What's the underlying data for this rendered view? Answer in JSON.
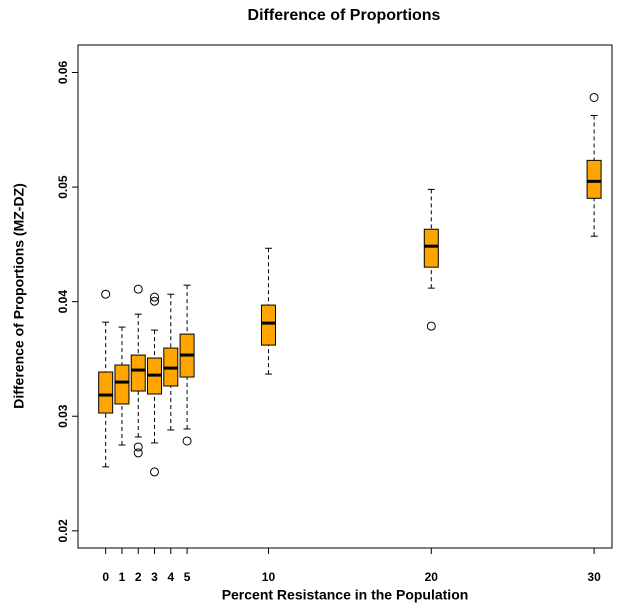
{
  "chart_data": {
    "type": "boxplot",
    "title": "Difference of Proportions",
    "xlabel": "Percent Resistance in the Population",
    "ylabel": "Difference of Proportions (MZ-DZ)",
    "color": "#FFA500",
    "x": [
      0,
      1,
      2,
      3,
      4,
      5,
      10,
      20,
      30
    ],
    "boxes": [
      {
        "min": 0.02558,
        "q1": 0.03028,
        "median": 0.03185,
        "q3": 0.03386,
        "max": 0.03821,
        "outliers": [
          0.04065
        ]
      },
      {
        "min": 0.02749,
        "q1": 0.03107,
        "median": 0.03298,
        "q3": 0.03447,
        "max": 0.03778,
        "outliers": []
      },
      {
        "min": 0.02819,
        "q1": 0.0322,
        "median": 0.03403,
        "q3": 0.03534,
        "max": 0.03891,
        "outliers": [
          0.04109,
          0.02732,
          0.0268
        ]
      },
      {
        "min": 0.02767,
        "q1": 0.03194,
        "median": 0.03359,
        "q3": 0.03508,
        "max": 0.03752,
        "outliers": [
          0.04039,
          0.04004,
          0.02514
        ]
      },
      {
        "min": 0.0288,
        "q1": 0.03264,
        "median": 0.0342,
        "q3": 0.03595,
        "max": 0.04065,
        "outliers": []
      },
      {
        "min": 0.02889,
        "q1": 0.03342,
        "median": 0.03534,
        "q3": 0.03717,
        "max": 0.04144,
        "outliers": [
          0.02784
        ]
      },
      {
        "min": 0.03368,
        "q1": 0.03621,
        "median": 0.03813,
        "q3": 0.0397,
        "max": 0.04466,
        "outliers": []
      },
      {
        "min": 0.04118,
        "q1": 0.04301,
        "median": 0.04484,
        "q3": 0.04632,
        "max": 0.0498,
        "outliers": [
          0.03786
        ]
      },
      {
        "min": 0.04571,
        "q1": 0.04902,
        "median": 0.0505,
        "q3": 0.05233,
        "max": 0.05625,
        "outliers": [
          0.05782
        ]
      }
    ],
    "xlim": [
      -1.7,
      31.1
    ],
    "xticks": [
      0,
      1,
      2,
      3,
      4,
      5,
      10,
      20,
      30
    ],
    "ylim": [
      0.0185,
      0.0624
    ],
    "yticks": [
      0.02,
      0.03,
      0.04,
      0.05,
      0.06
    ]
  }
}
